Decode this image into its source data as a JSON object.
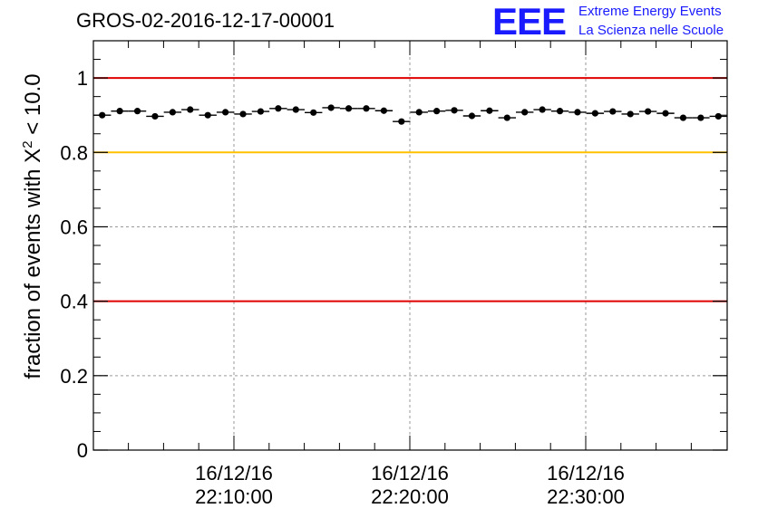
{
  "header": {
    "title": "GROS-02-2016-12-17-00001"
  },
  "logo": {
    "mark": "EEE",
    "line1": "Extreme Energy Events",
    "line2": "La Scienza nelle Scuole"
  },
  "chart_data": {
    "type": "scatter",
    "ylabel_prefix": "fraction of events with ",
    "ylabel_symbol": "X",
    "ylabel_exponent": "2",
    "ylabel_suffix": " < 10.0",
    "xlabel": "",
    "ylim": [
      0,
      1.1
    ],
    "y_ticks": [
      "0",
      "0.2",
      "0.4",
      "0.6",
      "0.8",
      "1"
    ],
    "x_ticks": [
      {
        "date": "16/12/16",
        "time": "22:10:00"
      },
      {
        "date": "16/12/16",
        "time": "22:20:00"
      },
      {
        "date": "16/12/16",
        "time": "22:30:00"
      }
    ],
    "grid": true,
    "reference_lines": [
      {
        "y": 1.0,
        "color": "#e00000"
      },
      {
        "y": 0.8,
        "color": "#ffc000"
      },
      {
        "y": 0.4,
        "color": "#e00000"
      }
    ],
    "series": [
      {
        "marker_color": "#000000",
        "values": [
          0.9,
          0.911,
          0.911,
          0.897,
          0.908,
          0.915,
          0.9,
          0.908,
          0.903,
          0.91,
          0.918,
          0.915,
          0.907,
          0.92,
          0.918,
          0.918,
          0.912,
          0.883,
          0.908,
          0.911,
          0.913,
          0.898,
          0.912,
          0.893,
          0.908,
          0.915,
          0.911,
          0.908,
          0.905,
          0.91,
          0.903,
          0.91,
          0.905,
          0.893,
          0.893,
          0.897
        ]
      }
    ]
  }
}
